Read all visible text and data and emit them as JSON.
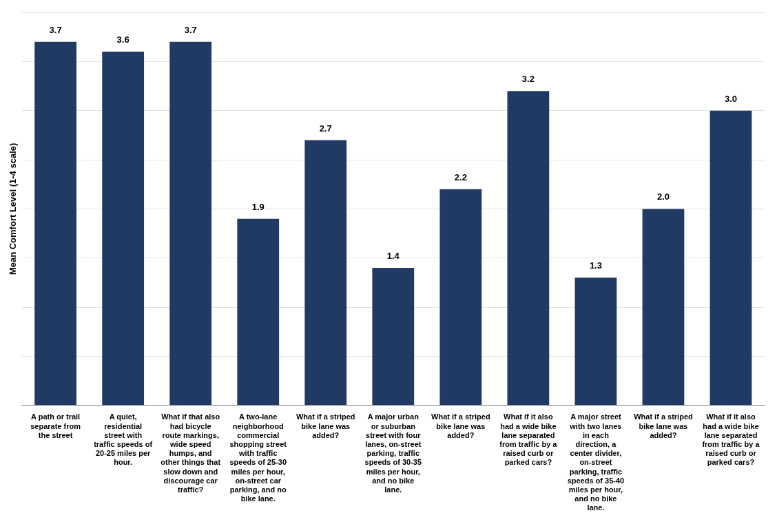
{
  "chart_data": {
    "type": "bar",
    "ylabel": "Mean Comfort Level (1-4 scale)",
    "categories": [
      "A path or trail separate from the street",
      "A quiet, residential street with traffic speeds of 20-25 miles per hour.",
      "What if that also had bicycle route markings, wide speed humps, and other things that slow down and discourage car traffic?",
      "A two-lane neighborhood commercial shopping street with traffic speeds of 25-30 miles per hour, on-street car parking, and no bike lane.",
      "What if a striped bike lane was added?",
      "A major urban or suburban street with four lanes, on-street parking, traffic speeds of 30-35 miles per hour, and no bike lane.",
      "What if a striped bike lane was added?",
      "What if it also had a wide bike lane separated from traffic by a raised curb or parked cars?",
      "A major street with two lanes in each direction, a center divider, on-street parking, traffic speeds of 35-40 miles per hour, and no bike lane.",
      "What if a striped bike lane was added?",
      "What if it also had a wide bike lane separated from traffic by a raised curb or parked cars?"
    ],
    "values": [
      3.7,
      3.6,
      3.7,
      1.9,
      2.7,
      1.4,
      2.2,
      3.2,
      1.3,
      2.0,
      3.0
    ],
    "value_labels": [
      "3.7",
      "3.6",
      "3.7",
      "1.9",
      "2.7",
      "1.4",
      "2.2",
      "3.2",
      "1.3",
      "2.0",
      "3.0"
    ],
    "color": "#213a63",
    "ylim": [
      0,
      4
    ],
    "yticks": [
      {
        "value": 0,
        "label": null
      },
      {
        "value": 0.5,
        "label": null
      },
      {
        "value": 1,
        "label": null
      },
      {
        "value": 1.5,
        "label": null
      },
      {
        "value": 2,
        "label": null
      },
      {
        "value": 2.5,
        "label": null
      },
      {
        "value": 3,
        "label": null
      },
      {
        "value": 3.5,
        "label": null
      },
      {
        "value": 4,
        "label": null
      }
    ],
    "grid": "y",
    "legend": false,
    "tick_labels": "x"
  }
}
